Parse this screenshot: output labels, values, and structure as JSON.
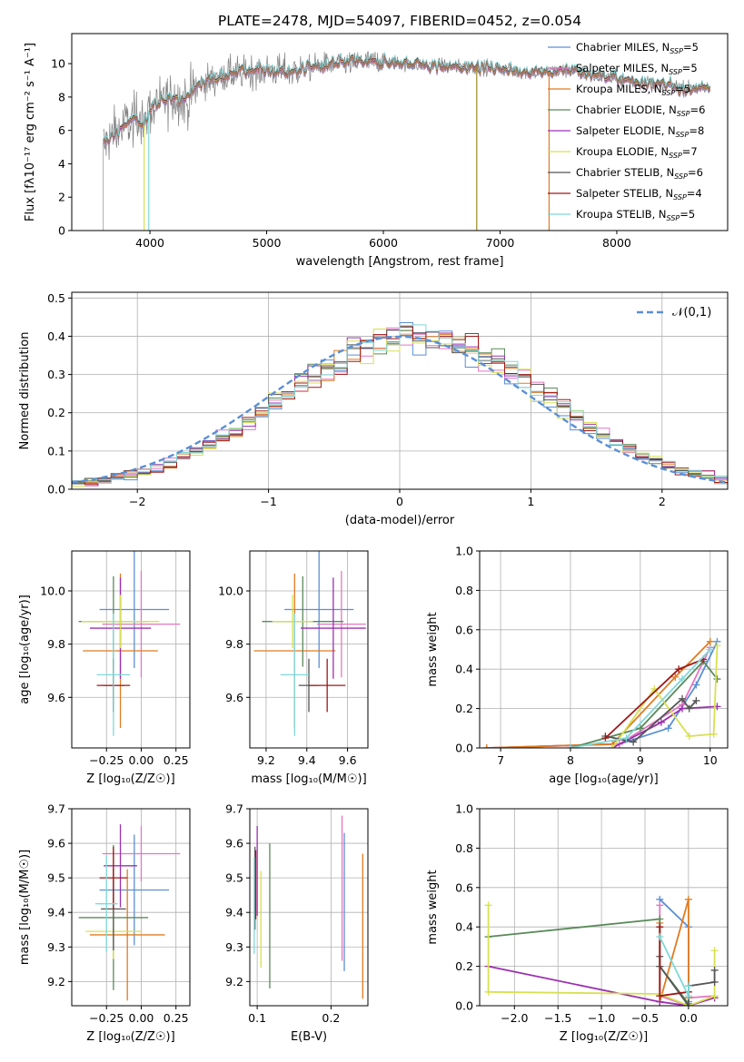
{
  "figure_title": "PLATE=2478, MJD=54097, FIBERID=0452, z=0.054",
  "colors": {
    "Chabrier MILES": "#5b8fd6",
    "Salpeter MILES": "#e377c2",
    "Kroupa MILES": "#e07b20",
    "Chabrier ELODIE": "#5a8a5a",
    "Salpeter ELODIE": "#9b30b0",
    "Kroupa ELODIE": "#d8e050",
    "Chabrier STELIB": "#555555",
    "Salpeter STELIB": "#a01818",
    "Kroupa STELIB": "#80d8d8",
    "data": "#808080"
  },
  "chart_data": [
    {
      "id": "spectrum",
      "type": "line",
      "xlabel": "wavelength [Angstrom, rest frame]",
      "ylabel": "Flux [fλ10⁻¹⁷ erg cm⁻² s⁻¹ A⁻¹]",
      "xlim": [
        3330,
        8950
      ],
      "ylim": [
        0,
        11.8
      ],
      "xticks": [
        4000,
        5000,
        6000,
        7000,
        8000
      ],
      "yticks": [
        0,
        2,
        4,
        6,
        8,
        10
      ],
      "grid": false,
      "legend": "right",
      "legend_entries": [
        {
          "name": "Chabrier MILES, NSSP=5",
          "base": "Chabrier MILES, N",
          "sub": "SSP",
          "suffix": "=5"
        },
        {
          "name": "Salpeter MILES, NSSP=5",
          "base": "Salpeter MILES, N",
          "sub": "SSP",
          "suffix": "=5"
        },
        {
          "name": "Kroupa MILES, NSSP=5",
          "base": "Kroupa MILES, N",
          "sub": "SSP",
          "suffix": "=5"
        },
        {
          "name": "Chabrier ELODIE, NSSP=6",
          "base": "Chabrier ELODIE, N",
          "sub": "SSP",
          "suffix": "=6"
        },
        {
          "name": "Salpeter ELODIE, NSSP=8",
          "base": "Salpeter ELODIE, N",
          "sub": "SSP",
          "suffix": "=8"
        },
        {
          "name": "Kroupa ELODIE, NSSP=7",
          "base": "Kroupa ELODIE, N",
          "sub": "SSP",
          "suffix": "=7"
        },
        {
          "name": "Chabrier STELIB, NSSP=6",
          "base": "Chabrier STELIB, N",
          "sub": "SSP",
          "suffix": "=6"
        },
        {
          "name": "Salpeter STELIB, NSSP=4",
          "base": "Salpeter STELIB, N",
          "sub": "SSP",
          "suffix": "=4"
        },
        {
          "name": "Kroupa STELIB, NSSP=5",
          "base": "Kroupa STELIB, N",
          "sub": "SSP",
          "suffix": "=5"
        }
      ],
      "continuum": [
        [
          3600,
          5.2
        ],
        [
          3700,
          5.8
        ],
        [
          3800,
          6.4
        ],
        [
          3900,
          6.8
        ],
        [
          3950,
          6.3
        ],
        [
          4000,
          7.3
        ],
        [
          4100,
          7.7
        ],
        [
          4200,
          8.0
        ],
        [
          4300,
          7.8
        ],
        [
          4400,
          8.6
        ],
        [
          4500,
          9.0
        ],
        [
          4600,
          9.2
        ],
        [
          4700,
          9.4
        ],
        [
          4800,
          9.5
        ],
        [
          4900,
          9.6
        ],
        [
          5000,
          9.6
        ],
        [
          5200,
          9.5
        ],
        [
          5400,
          9.8
        ],
        [
          5600,
          10.0
        ],
        [
          5800,
          10.1
        ],
        [
          6000,
          10.1
        ],
        [
          6200,
          10.0
        ],
        [
          6400,
          9.9
        ],
        [
          6600,
          9.8
        ],
        [
          6800,
          9.8
        ],
        [
          7000,
          9.7
        ],
        [
          7200,
          9.5
        ],
        [
          7400,
          9.5
        ],
        [
          7600,
          9.6
        ],
        [
          7800,
          9.3
        ],
        [
          8000,
          9.1
        ],
        [
          8200,
          8.9
        ],
        [
          8400,
          8.7
        ],
        [
          8600,
          8.5
        ],
        [
          8800,
          8.5
        ]
      ]
    },
    {
      "id": "residuals",
      "type": "histogram",
      "xlabel": "(data-model)/error",
      "ylabel": "Normed distribution",
      "xlim": [
        -2.5,
        2.5
      ],
      "ylim": [
        0,
        0.515
      ],
      "xticks": [
        -2,
        -1,
        0,
        1,
        2
      ],
      "yticks": [
        0.0,
        0.1,
        0.2,
        0.3,
        0.4,
        0.5
      ],
      "grid": true,
      "legend": "top-right",
      "reference_label": "𝒩(0,1)"
    },
    {
      "id": "age_vs_Z",
      "type": "errorbar",
      "xlabel": "Z [log₁₀(Z/Z☉)]",
      "ylabel": "age  [log₁₀(age/yr)]",
      "xlim": [
        -0.5,
        0.35
      ],
      "ylim": [
        9.41,
        10.15
      ],
      "xticks": [
        -0.25,
        0.0,
        0.25
      ],
      "yticks": [
        9.6,
        9.8,
        10.0
      ],
      "grid": true,
      "points": [
        {
          "series": "Chabrier MILES",
          "x": -0.05,
          "xerr": 0.25,
          "y": 9.93,
          "yerr": 0.22
        },
        {
          "series": "Salpeter MILES",
          "x": 0.0,
          "xerr": 0.28,
          "y": 9.875,
          "yerr": 0.2
        },
        {
          "series": "Kroupa MILES",
          "x": -0.15,
          "xerr": 0.27,
          "y": 9.775,
          "yerr": 0.29
        },
        {
          "series": "Chabrier ELODIE",
          "x": -0.2,
          "xerr": 0.25,
          "y": 9.885,
          "yerr": 0.17
        },
        {
          "series": "Salpeter ELODIE",
          "x": -0.15,
          "xerr": 0.22,
          "y": 9.86,
          "yerr": 0.19
        },
        {
          "series": "Kroupa ELODIE",
          "x": -0.15,
          "xerr": 0.28,
          "y": 9.885,
          "yerr": 0.1
        },
        {
          "series": "Chabrier STELIB",
          "x": -0.2,
          "xerr": 0.08,
          "y": 9.645,
          "yerr": 0.1
        },
        {
          "series": "Salpeter STELIB",
          "x": -0.2,
          "xerr": 0.12,
          "y": 9.645,
          "yerr": 0.1
        },
        {
          "series": "Kroupa STELIB",
          "x": -0.2,
          "xerr": 0.12,
          "y": 9.685,
          "yerr": 0.23
        }
      ]
    },
    {
      "id": "age_vs_mass",
      "type": "errorbar",
      "xlabel": "mass [log₁₀(M/M☉)]",
      "ylabel": "",
      "xlim": [
        9.12,
        9.7
      ],
      "ylim": [
        9.41,
        10.15
      ],
      "xticks": [
        9.2,
        9.4,
        9.6
      ],
      "yticks": [
        9.6,
        9.8,
        10.0
      ],
      "grid": true,
      "points": [
        {
          "series": "Chabrier MILES",
          "x": 9.46,
          "xerr": 0.17,
          "y": 9.93,
          "yerr": 0.22
        },
        {
          "series": "Salpeter MILES",
          "x": 9.57,
          "xerr": 0.12,
          "y": 9.875,
          "yerr": 0.2
        },
        {
          "series": "Kroupa MILES",
          "x": 9.34,
          "xerr": 0.2,
          "y": 9.775,
          "yerr": 0.29
        },
        {
          "series": "Chabrier ELODIE",
          "x": 9.38,
          "xerr": 0.2,
          "y": 9.885,
          "yerr": 0.17
        },
        {
          "series": "Salpeter ELODIE",
          "x": 9.53,
          "xerr": 0.16,
          "y": 9.86,
          "yerr": 0.19
        },
        {
          "series": "Kroupa ELODIE",
          "x": 9.33,
          "xerr": 0.1,
          "y": 9.885,
          "yerr": 0.1
        },
        {
          "series": "Chabrier STELIB",
          "x": 9.41,
          "xerr": 0.05,
          "y": 9.645,
          "yerr": 0.1
        },
        {
          "series": "Salpeter STELIB",
          "x": 9.5,
          "xerr": 0.09,
          "y": 9.645,
          "yerr": 0.1
        },
        {
          "series": "Kroupa STELIB",
          "x": 9.34,
          "xerr": 0.07,
          "y": 9.685,
          "yerr": 0.23
        }
      ]
    },
    {
      "id": "mass_weight_vs_age",
      "type": "line",
      "xlabel": "age  [log₁₀(age/yr)]",
      "ylabel": "mass weight",
      "xlim": [
        6.7,
        10.25
      ],
      "ylim": [
        0,
        1.0
      ],
      "xticks": [
        7,
        8,
        9,
        10
      ],
      "yticks": [
        0.0,
        0.2,
        0.4,
        0.6,
        0.8,
        1.0
      ],
      "grid": true,
      "series": [
        {
          "name": "Chabrier MILES",
          "x": [
            6.8,
            8.7,
            9.4,
            9.8,
            10.1
          ],
          "y": [
            0.0,
            0.02,
            0.1,
            0.32,
            0.54
          ]
        },
        {
          "name": "Salpeter MILES",
          "x": [
            6.8,
            8.7,
            9.6,
            10.0
          ],
          "y": [
            0.0,
            0.02,
            0.22,
            0.51
          ]
        },
        {
          "name": "Kroupa MILES",
          "x": [
            6.8,
            8.6,
            9.5,
            10.0
          ],
          "y": [
            0.0,
            0.02,
            0.36,
            0.54
          ]
        },
        {
          "name": "Chabrier ELODIE",
          "x": [
            8.0,
            9.0,
            9.9,
            10.1
          ],
          "y": [
            0.0,
            0.1,
            0.44,
            0.35
          ]
        },
        {
          "name": "Salpeter ELODIE",
          "x": [
            8.6,
            9.3,
            9.6,
            10.1
          ],
          "y": [
            0.0,
            0.13,
            0.2,
            0.21
          ]
        },
        {
          "name": "Kroupa ELODIE",
          "x": [
            8.6,
            9.2,
            9.7,
            10.05,
            10.1
          ],
          "y": [
            0.0,
            0.3,
            0.06,
            0.07,
            0.52
          ]
        },
        {
          "name": "Chabrier STELIB",
          "x": [
            8.5,
            8.9,
            9.6,
            9.7,
            9.8
          ],
          "y": [
            0.06,
            0.03,
            0.25,
            0.2,
            0.24
          ]
        },
        {
          "name": "Salpeter STELIB",
          "x": [
            8.5,
            9.55,
            9.9
          ],
          "y": [
            0.05,
            0.4,
            0.45
          ]
        },
        {
          "name": "Kroupa STELIB",
          "x": [
            8.0,
            8.8,
            9.6,
            10.0
          ],
          "y": [
            0.0,
            0.05,
            0.35,
            0.5
          ]
        }
      ]
    },
    {
      "id": "mass_vs_Z",
      "type": "errorbar",
      "xlabel": "Z [log₁₀(Z/Z☉)]",
      "ylabel": "mass [log₁₀(M/M☉)]",
      "xlim": [
        -0.5,
        0.35
      ],
      "ylim": [
        9.13,
        9.7
      ],
      "xticks": [
        -0.25,
        0.0,
        0.25
      ],
      "yticks": [
        9.2,
        9.3,
        9.4,
        9.5,
        9.6,
        9.7
      ],
      "grid": true,
      "points": [
        {
          "series": "Chabrier MILES",
          "x": -0.05,
          "xerr": 0.25,
          "y": 9.465,
          "yerr": 0.16
        },
        {
          "series": "Salpeter MILES",
          "x": 0.0,
          "xerr": 0.28,
          "y": 9.57,
          "yerr": 0.08
        },
        {
          "series": "Kroupa MILES",
          "x": -0.1,
          "xerr": 0.27,
          "y": 9.335,
          "yerr": 0.19
        },
        {
          "series": "Chabrier ELODIE",
          "x": -0.2,
          "xerr": 0.25,
          "y": 9.385,
          "yerr": 0.21
        },
        {
          "series": "Salpeter ELODIE",
          "x": -0.15,
          "xerr": 0.12,
          "y": 9.535,
          "yerr": 0.12
        },
        {
          "series": "Kroupa ELODIE",
          "x": -0.2,
          "xerr": 0.2,
          "y": 9.345,
          "yerr": 0.08
        },
        {
          "series": "Chabrier STELIB",
          "x": -0.2,
          "xerr": 0.09,
          "y": 9.41,
          "yerr": 0.12
        },
        {
          "series": "Salpeter STELIB",
          "x": -0.2,
          "xerr": 0.1,
          "y": 9.5,
          "yerr": 0.09
        },
        {
          "series": "Kroupa STELIB",
          "x": -0.25,
          "xerr": 0.08,
          "y": 9.425,
          "yerr": 0.14
        }
      ]
    },
    {
      "id": "mass_vs_ebv",
      "type": "errorbar",
      "xlabel": "E(B-V)",
      "ylabel": "",
      "xlim": [
        0.09,
        0.25
      ],
      "ylim": [
        9.13,
        9.7
      ],
      "xticks": [
        0.1,
        0.2
      ],
      "yticks": [
        9.2,
        9.3,
        9.4,
        9.5,
        9.6,
        9.7
      ],
      "grid": true,
      "points": [
        {
          "series": "Chabrier MILES",
          "x": 0.218,
          "xerr": 0,
          "y": 9.43,
          "yerr": 0.2
        },
        {
          "series": "Salpeter MILES",
          "x": 0.215,
          "xerr": 0,
          "y": 9.47,
          "yerr": 0.21
        },
        {
          "series": "Kroupa MILES",
          "x": 0.243,
          "xerr": 0,
          "y": 9.36,
          "yerr": 0.21
        },
        {
          "series": "Chabrier ELODIE",
          "x": 0.117,
          "xerr": 0,
          "y": 9.39,
          "yerr": 0.21
        },
        {
          "series": "Salpeter ELODIE",
          "x": 0.1,
          "xerr": 0,
          "y": 9.52,
          "yerr": 0.13
        },
        {
          "series": "Kroupa ELODIE",
          "x": 0.105,
          "xerr": 0,
          "y": 9.38,
          "yerr": 0.14
        },
        {
          "series": "Chabrier STELIB",
          "x": 0.097,
          "xerr": 0,
          "y": 9.47,
          "yerr": 0.12
        },
        {
          "series": "Salpeter STELIB",
          "x": 0.098,
          "xerr": 0,
          "y": 9.48,
          "yerr": 0.1
        },
        {
          "series": "Kroupa STELIB",
          "x": 0.096,
          "xerr": 0,
          "y": 9.42,
          "yerr": 0.14
        }
      ]
    },
    {
      "id": "mass_weight_vs_Z",
      "type": "line",
      "xlabel": "Z [log₁₀(Z/Z☉)]",
      "ylabel": "mass weight",
      "xlim": [
        -2.4,
        0.45
      ],
      "ylim": [
        0,
        1.0
      ],
      "xticks": [
        -2.0,
        -1.5,
        -1.0,
        -0.5,
        0.0
      ],
      "yticks": [
        0.0,
        0.2,
        0.4,
        0.6,
        0.8,
        1.0
      ],
      "grid": true,
      "series": [
        {
          "name": "Chabrier MILES",
          "x": [
            -0.33,
            0.0,
            0.0
          ],
          "y": [
            0.54,
            0.4,
            0.02
          ]
        },
        {
          "name": "Salpeter MILES",
          "x": [
            -0.33,
            -0.33,
            0.0,
            0.0,
            0.3
          ],
          "y": [
            0.51,
            0.05,
            0.0,
            0.04,
            0.05
          ]
        },
        {
          "name": "Kroupa MILES",
          "x": [
            -0.33,
            -0.33,
            0.0,
            0.0
          ],
          "y": [
            0.42,
            0.02,
            0.54,
            0.04
          ]
        },
        {
          "name": "Chabrier ELODIE",
          "x": [
            -2.3,
            -0.33,
            -0.33,
            0.0
          ],
          "y": [
            0.35,
            0.44,
            0.2,
            0.01
          ]
        },
        {
          "name": "Salpeter ELODIE",
          "x": [
            -2.3,
            -0.33,
            0.0,
            0.3
          ],
          "y": [
            0.2,
            0.02,
            0.0,
            0.04
          ]
        },
        {
          "name": "Kroupa ELODIE",
          "x": [
            -2.3,
            -2.3,
            -0.33,
            0.0,
            0.3,
            0.3
          ],
          "y": [
            0.51,
            0.07,
            0.06,
            0.0,
            0.05,
            0.28
          ]
        },
        {
          "name": "Chabrier STELIB",
          "x": [
            -0.33,
            -0.33,
            0.0,
            0.0,
            0.3,
            0.3
          ],
          "y": [
            0.25,
            0.2,
            0.0,
            0.1,
            0.12,
            0.18
          ]
        },
        {
          "name": "Salpeter STELIB",
          "x": [
            -0.33,
            -0.33,
            0.0
          ],
          "y": [
            0.4,
            0.05,
            0.07
          ]
        },
        {
          "name": "Kroupa STELIB",
          "x": [
            -0.33,
            0.0,
            0.0
          ],
          "y": [
            0.35,
            0.05,
            0.1
          ]
        }
      ]
    }
  ]
}
